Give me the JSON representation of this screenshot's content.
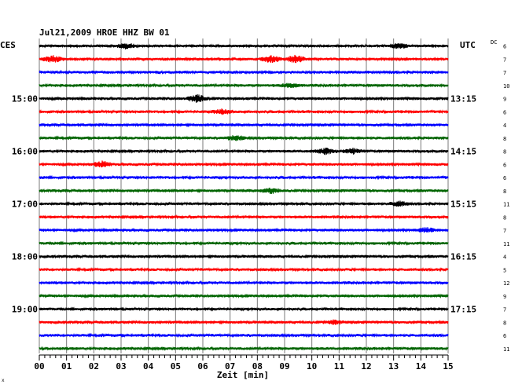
{
  "chart_data": {
    "type": "line",
    "title": "Jul21,2009  HROE HHZ BW 01",
    "left_label": "CES",
    "right_label": "UTC",
    "dc_label": "DC",
    "xlabel": "Zeit [min]",
    "xlim": [
      0,
      15
    ],
    "x_ticks": [
      "00",
      "01",
      "02",
      "03",
      "04",
      "05",
      "06",
      "07",
      "08",
      "09",
      "10",
      "11",
      "12",
      "13",
      "14",
      "15"
    ],
    "left_time_labels": [
      {
        "row": 4,
        "text": "15:00"
      },
      {
        "row": 8,
        "text": "16:00"
      },
      {
        "row": 12,
        "text": "17:00"
      },
      {
        "row": 16,
        "text": "18:00"
      },
      {
        "row": 20,
        "text": "19:00"
      }
    ],
    "right_time_labels": [
      {
        "row": 4,
        "text": "13:15"
      },
      {
        "row": 8,
        "text": "14:15"
      },
      {
        "row": 12,
        "text": "15:15"
      },
      {
        "row": 16,
        "text": "16:15"
      },
      {
        "row": 20,
        "text": "17:15"
      }
    ],
    "trace_colors": [
      "#000000",
      "#ff0000",
      "#0000ff",
      "#006400"
    ],
    "dc_values": [
      "6",
      "7",
      "7",
      "10",
      "9",
      "6",
      "4",
      "8",
      "8",
      "6",
      "6",
      "8",
      "11",
      "8",
      "7",
      "11",
      "4",
      "5",
      "12",
      "9",
      "7",
      "8",
      "6",
      "11"
    ],
    "events": [
      {
        "row": 0,
        "minute": 3.2,
        "amplitude": 1.8
      },
      {
        "row": 0,
        "minute": 13.2,
        "amplitude": 1.6
      },
      {
        "row": 1,
        "minute": 0.5,
        "amplitude": 2.2
      },
      {
        "row": 1,
        "minute": 8.5,
        "amplitude": 2.4
      },
      {
        "row": 1,
        "minute": 9.4,
        "amplitude": 2.6
      },
      {
        "row": 3,
        "minute": 9.2,
        "amplitude": 1.4
      },
      {
        "row": 4,
        "minute": 5.8,
        "amplitude": 2.8
      },
      {
        "row": 5,
        "minute": 6.7,
        "amplitude": 1.7
      },
      {
        "row": 7,
        "minute": 7.2,
        "amplitude": 1.6
      },
      {
        "row": 8,
        "minute": 10.5,
        "amplitude": 2.0
      },
      {
        "row": 8,
        "minute": 11.5,
        "amplitude": 1.8
      },
      {
        "row": 9,
        "minute": 2.3,
        "amplitude": 2.0
      },
      {
        "row": 11,
        "minute": 8.5,
        "amplitude": 1.8
      },
      {
        "row": 12,
        "minute": 13.2,
        "amplitude": 1.6
      },
      {
        "row": 14,
        "minute": 14.2,
        "amplitude": 1.6
      },
      {
        "row": 21,
        "minute": 10.8,
        "amplitude": 1.4
      }
    ],
    "footnote_mark": "x"
  }
}
